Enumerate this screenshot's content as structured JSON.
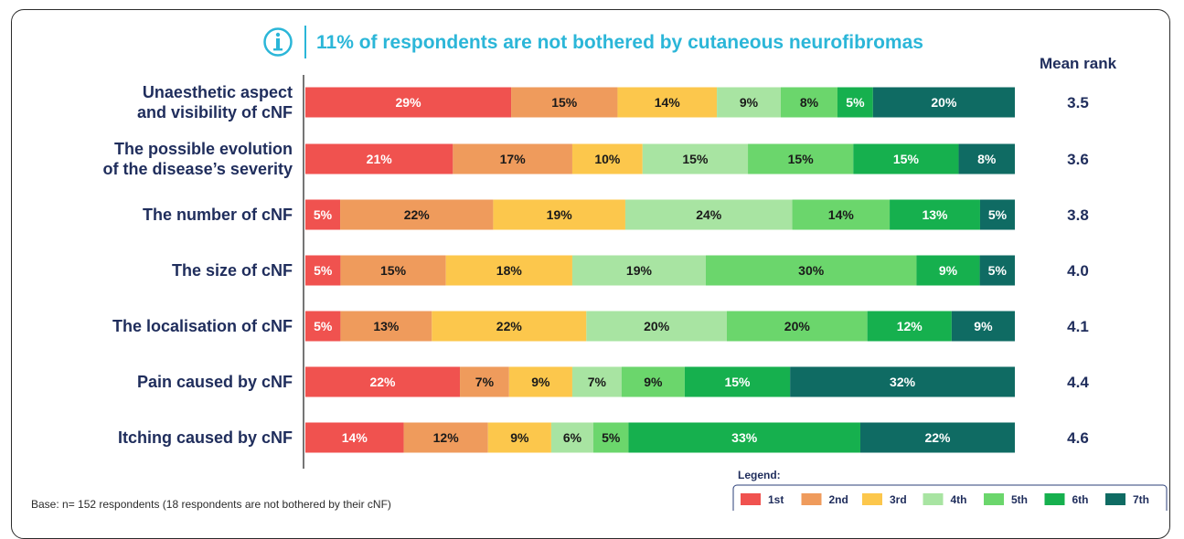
{
  "chart_data": {
    "type": "bar",
    "orientation": "horizontal",
    "stacked": true,
    "percent_stacked": true,
    "title": "11% of respondents are not bothered by cutaneous neurofibromas",
    "mean_rank_header": "Mean rank",
    "categories": [
      "Unaesthetic aspect and visibility of cNF",
      "The possible evolution of the disease’s severity",
      "The number of cNF",
      "The size of cNF",
      "The localisation of cNF",
      "Pain caused by cNF",
      "Itching caused by cNF"
    ],
    "category_lines": [
      [
        "Unaesthetic aspect",
        "and visibility of cNF"
      ],
      [
        "The possible evolution",
        "of the disease’s severity"
      ],
      [
        "The number of cNF"
      ],
      [
        "The size of cNF"
      ],
      [
        "The localisation of cNF"
      ],
      [
        "Pain caused by cNF"
      ],
      [
        "Itching caused by cNF"
      ]
    ],
    "mean_rank": [
      "3.5",
      "3.6",
      "3.8",
      "4.0",
      "4.1",
      "4.4",
      "4.6"
    ],
    "series": [
      {
        "name": "1st",
        "color": "#f0524f",
        "label_color": "#ffffff",
        "values": [
          29,
          21,
          5,
          5,
          5,
          22,
          14
        ]
      },
      {
        "name": "2nd",
        "color": "#ef9b5c",
        "label_color": "#1a1a1a",
        "values": [
          15,
          17,
          22,
          15,
          13,
          7,
          12
        ]
      },
      {
        "name": "3rd",
        "color": "#fcc74c",
        "label_color": "#1a1a1a",
        "values": [
          14,
          10,
          19,
          18,
          22,
          9,
          9
        ]
      },
      {
        "name": "4th",
        "color": "#a8e4a2",
        "label_color": "#1a1a1a",
        "values": [
          9,
          15,
          24,
          19,
          20,
          7,
          6
        ]
      },
      {
        "name": "5th",
        "color": "#6bd66c",
        "label_color": "#1a1a1a",
        "values": [
          8,
          15,
          14,
          30,
          20,
          9,
          5
        ]
      },
      {
        "name": "6th",
        "color": "#16b04e",
        "label_color": "#ffffff",
        "values": [
          5,
          15,
          13,
          9,
          12,
          15,
          33
        ]
      },
      {
        "name": "7th",
        "color": "#0f6b63",
        "label_color": "#ffffff",
        "values": [
          20,
          8,
          5,
          5,
          9,
          32,
          22
        ]
      }
    ],
    "xlim": [
      0,
      100
    ],
    "grid": false,
    "legend": {
      "title": "Legend:",
      "placement": "bottom-right"
    },
    "base_note": "Base: n= 152 respondents (18 respondents are not bothered by their cNF)"
  },
  "info_icon": "info-circle-icon"
}
